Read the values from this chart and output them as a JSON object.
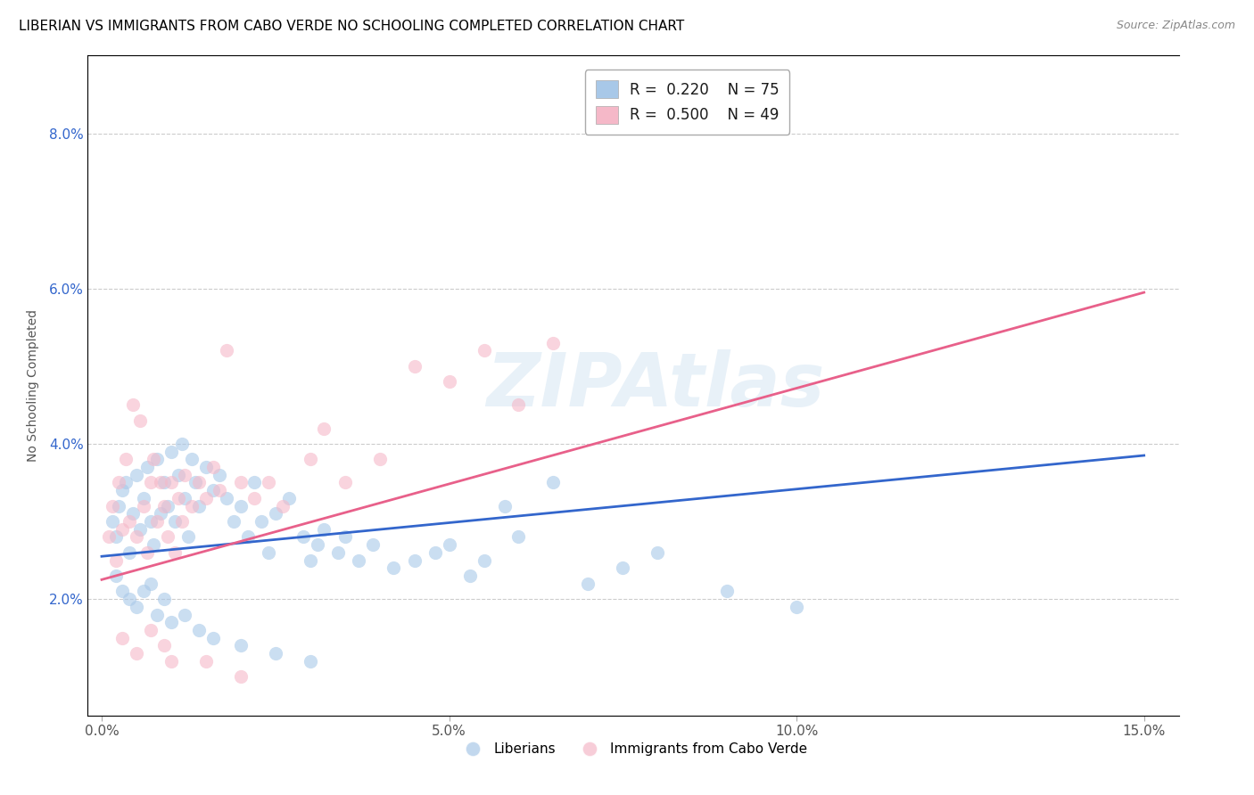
{
  "title": "LIBERIAN VS IMMIGRANTS FROM CABO VERDE NO SCHOOLING COMPLETED CORRELATION CHART",
  "source": "Source: ZipAtlas.com",
  "xlabel_ticks": [
    "0.0%",
    "5.0%",
    "10.0%",
    "15.0%"
  ],
  "xlabel_tick_vals": [
    0.0,
    5.0,
    10.0,
    15.0
  ],
  "ylabel_ticks": [
    "2.0%",
    "4.0%",
    "6.0%",
    "8.0%"
  ],
  "ylabel_tick_vals": [
    2.0,
    4.0,
    6.0,
    8.0
  ],
  "xlim": [
    -0.2,
    15.5
  ],
  "ylim": [
    0.5,
    9.0
  ],
  "color_blue": "#a8c8e8",
  "color_pink": "#f5b8c8",
  "color_blue_line": "#3366cc",
  "color_pink_line": "#e8608a",
  "blue_scatter": [
    [
      0.15,
      3.0
    ],
    [
      0.2,
      2.8
    ],
    [
      0.25,
      3.2
    ],
    [
      0.3,
      3.4
    ],
    [
      0.35,
      3.5
    ],
    [
      0.4,
      2.6
    ],
    [
      0.45,
      3.1
    ],
    [
      0.5,
      3.6
    ],
    [
      0.55,
      2.9
    ],
    [
      0.6,
      3.3
    ],
    [
      0.65,
      3.7
    ],
    [
      0.7,
      3.0
    ],
    [
      0.75,
      2.7
    ],
    [
      0.8,
      3.8
    ],
    [
      0.85,
      3.1
    ],
    [
      0.9,
      3.5
    ],
    [
      0.95,
      3.2
    ],
    [
      1.0,
      3.9
    ],
    [
      1.05,
      3.0
    ],
    [
      1.1,
      3.6
    ],
    [
      1.15,
      4.0
    ],
    [
      1.2,
      3.3
    ],
    [
      1.25,
      2.8
    ],
    [
      1.3,
      3.8
    ],
    [
      1.35,
      3.5
    ],
    [
      1.4,
      3.2
    ],
    [
      1.5,
      3.7
    ],
    [
      1.6,
      3.4
    ],
    [
      1.7,
      3.6
    ],
    [
      1.8,
      3.3
    ],
    [
      1.9,
      3.0
    ],
    [
      2.0,
      3.2
    ],
    [
      2.1,
      2.8
    ],
    [
      2.2,
      3.5
    ],
    [
      2.3,
      3.0
    ],
    [
      2.4,
      2.6
    ],
    [
      2.5,
      3.1
    ],
    [
      2.7,
      3.3
    ],
    [
      2.9,
      2.8
    ],
    [
      3.0,
      2.5
    ],
    [
      3.1,
      2.7
    ],
    [
      3.2,
      2.9
    ],
    [
      3.4,
      2.6
    ],
    [
      3.5,
      2.8
    ],
    [
      3.7,
      2.5
    ],
    [
      3.9,
      2.7
    ],
    [
      4.2,
      2.4
    ],
    [
      4.5,
      2.5
    ],
    [
      4.8,
      2.6
    ],
    [
      5.0,
      2.7
    ],
    [
      5.3,
      2.3
    ],
    [
      5.5,
      2.5
    ],
    [
      5.8,
      3.2
    ],
    [
      6.0,
      2.8
    ],
    [
      6.5,
      3.5
    ],
    [
      7.0,
      2.2
    ],
    [
      7.5,
      2.4
    ],
    [
      8.0,
      2.6
    ],
    [
      9.0,
      2.1
    ],
    [
      10.0,
      1.9
    ],
    [
      0.2,
      2.3
    ],
    [
      0.3,
      2.1
    ],
    [
      0.4,
      2.0
    ],
    [
      0.5,
      1.9
    ],
    [
      0.6,
      2.1
    ],
    [
      0.7,
      2.2
    ],
    [
      0.8,
      1.8
    ],
    [
      0.9,
      2.0
    ],
    [
      1.0,
      1.7
    ],
    [
      1.2,
      1.8
    ],
    [
      1.4,
      1.6
    ],
    [
      1.6,
      1.5
    ],
    [
      2.0,
      1.4
    ],
    [
      2.5,
      1.3
    ],
    [
      3.0,
      1.2
    ]
  ],
  "pink_scatter": [
    [
      0.1,
      2.8
    ],
    [
      0.15,
      3.2
    ],
    [
      0.2,
      2.5
    ],
    [
      0.25,
      3.5
    ],
    [
      0.3,
      2.9
    ],
    [
      0.35,
      3.8
    ],
    [
      0.4,
      3.0
    ],
    [
      0.45,
      4.5
    ],
    [
      0.5,
      2.8
    ],
    [
      0.55,
      4.3
    ],
    [
      0.6,
      3.2
    ],
    [
      0.65,
      2.6
    ],
    [
      0.7,
      3.5
    ],
    [
      0.75,
      3.8
    ],
    [
      0.8,
      3.0
    ],
    [
      0.85,
      3.5
    ],
    [
      0.9,
      3.2
    ],
    [
      0.95,
      2.8
    ],
    [
      1.0,
      3.5
    ],
    [
      1.05,
      2.6
    ],
    [
      1.1,
      3.3
    ],
    [
      1.15,
      3.0
    ],
    [
      1.2,
      3.6
    ],
    [
      1.3,
      3.2
    ],
    [
      1.4,
      3.5
    ],
    [
      1.5,
      3.3
    ],
    [
      1.6,
      3.7
    ],
    [
      1.7,
      3.4
    ],
    [
      1.8,
      5.2
    ],
    [
      2.0,
      3.5
    ],
    [
      2.2,
      3.3
    ],
    [
      2.4,
      3.5
    ],
    [
      2.6,
      3.2
    ],
    [
      3.0,
      3.8
    ],
    [
      3.2,
      4.2
    ],
    [
      3.5,
      3.5
    ],
    [
      4.0,
      3.8
    ],
    [
      4.5,
      5.0
    ],
    [
      5.0,
      4.8
    ],
    [
      5.5,
      5.2
    ],
    [
      6.0,
      4.5
    ],
    [
      6.5,
      5.3
    ],
    [
      0.3,
      1.5
    ],
    [
      0.5,
      1.3
    ],
    [
      0.7,
      1.6
    ],
    [
      0.9,
      1.4
    ],
    [
      1.0,
      1.2
    ],
    [
      1.5,
      1.2
    ],
    [
      2.0,
      1.0
    ]
  ],
  "blue_line_x": [
    0.0,
    15.0
  ],
  "blue_line_y_start": 2.55,
  "blue_line_y_end": 3.85,
  "pink_line_x": [
    0.0,
    15.0
  ],
  "pink_line_y_start": 2.25,
  "pink_line_y_end": 5.95,
  "background_color": "#ffffff",
  "grid_color": "#cccccc",
  "watermark": "ZIPAtlas",
  "title_fontsize": 11,
  "tick_fontsize": 11,
  "ylabel_fontsize": 10,
  "legend_fontsize": 12
}
